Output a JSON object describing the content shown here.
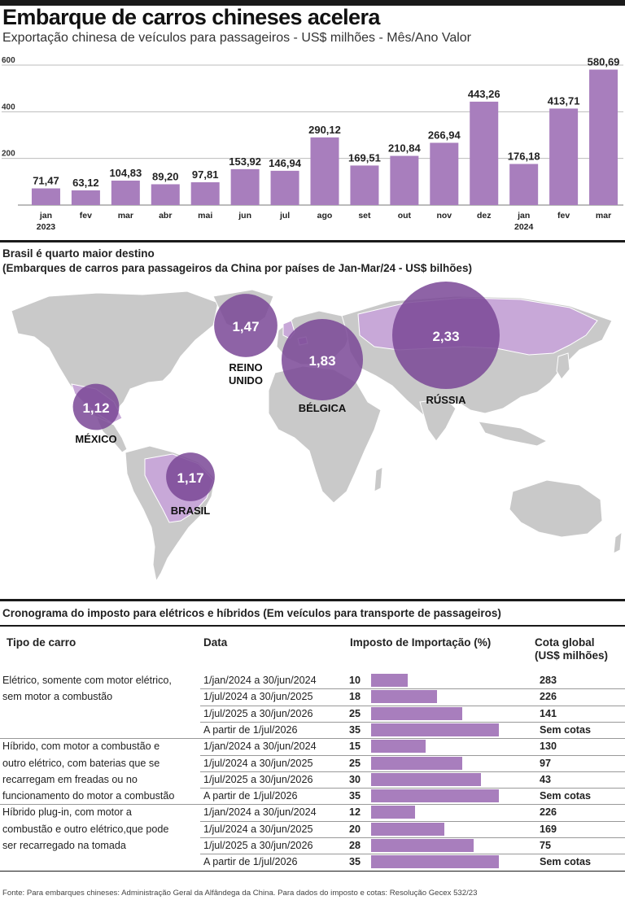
{
  "header": {
    "title": "Embarque de carros chineses acelera",
    "subtitle": "Exportação chinesa de veículos para passageiros - US$ milhões - Mês/Ano Valor"
  },
  "colors": {
    "bar": "#a87ebd",
    "bubble": "#7a4896",
    "land": "#c9c9c9",
    "highlight_land": "#c8a8d8",
    "rule": "#1a1a1a"
  },
  "chart_data": {
    "type": "bar",
    "title": "Embarque de carros chineses acelera",
    "subtitle": "Exportação chinesa de veículos para passageiros - US$ milhões - Mês/Ano Valor",
    "categories": [
      "jan",
      "fev",
      "mar",
      "abr",
      "mai",
      "jun",
      "jul",
      "ago",
      "set",
      "out",
      "nov",
      "dez",
      "jan",
      "fev",
      "mar"
    ],
    "year_labels": [
      {
        "index": 0,
        "label": "2023"
      },
      {
        "index": 12,
        "label": "2024"
      }
    ],
    "values": [
      71.47,
      63.12,
      104.83,
      89.2,
      97.81,
      153.92,
      146.94,
      290.12,
      169.51,
      210.84,
      266.94,
      443.26,
      176.18,
      413.71,
      580.69
    ],
    "value_labels": [
      "71,47",
      "63,12",
      "104,83",
      "89,20",
      "97,81",
      "153,92",
      "146,94",
      "290,12",
      "169,51",
      "210,84",
      "266,94",
      "443,26",
      "176,18",
      "413,71",
      "580,69"
    ],
    "yticks": [
      200,
      400,
      600
    ],
    "ytick_labels": [
      "200",
      "400",
      "600"
    ],
    "ylim": [
      0,
      600
    ],
    "xlabel": "",
    "ylabel": ""
  },
  "map": {
    "title": "Brasil é quarto maior destino",
    "subtitle": "(Embarques de carros para passageiros da China por países de Jan-Mar/24 - US$ bilhões)",
    "destinations": [
      {
        "country": "RÚSSIA",
        "value": 2.33,
        "value_label": "2,33"
      },
      {
        "country": "BÉLGICA",
        "value": 1.83,
        "value_label": "1,83"
      },
      {
        "country": "REINO UNIDO",
        "label_line1": "REINO",
        "label_line2": "UNIDO",
        "value": 1.47,
        "value_label": "1,47"
      },
      {
        "country": "BRASIL",
        "value": 1.17,
        "value_label": "1,17"
      },
      {
        "country": "MÉXICO",
        "value": 1.12,
        "value_label": "1,12"
      }
    ]
  },
  "tax_table": {
    "title": "Cronograma do imposto para elétricos e híbridos (Em veículos para transporte de passageiros)",
    "headers": {
      "type": "Tipo  de carro",
      "date": "Data",
      "rate": "Imposto de Importação (%)",
      "quota_line1": "Cota global",
      "quota_line2": "(US$ milhões)"
    },
    "groups": [
      {
        "type_lines": [
          "Elétrico, somente com motor elétrico,",
          "sem motor a combustão"
        ],
        "rows": [
          {
            "date": "1/jan/2024 a 30/jun/2024",
            "rate": 10,
            "quota": "283"
          },
          {
            "date": "1/jul/2024 a 30/jun/2025",
            "rate": 18,
            "quota": "226"
          },
          {
            "date": "1/jul/2025 a 30/jun/2026",
            "rate": 25,
            "quota": "141"
          },
          {
            "date": "A partir de 1/jul/2026",
            "rate": 35,
            "quota": "Sem cotas"
          }
        ]
      },
      {
        "type_lines": [
          "Híbrido, com motor a combustão e",
          "outro elétrico, com baterias que se",
          "recarregam em freadas ou no",
          "funcionamento do motor a combustão"
        ],
        "rows": [
          {
            "date": "1/jan/2024 a 30/jun/2024",
            "rate": 15,
            "quota": "130"
          },
          {
            "date": "1/jul/2024 a 30/jun/2025",
            "rate": 25,
            "quota": "97"
          },
          {
            "date": "1/jul/2025 a 30/jun/2026",
            "rate": 30,
            "quota": "43"
          },
          {
            "date": "A partir de 1/jul/2026",
            "rate": 35,
            "quota": "Sem cotas"
          }
        ]
      },
      {
        "type_lines": [
          "Híbrido plug-in, com motor a",
          "combustão e outro elétrico,que  pode",
          "ser recarregado na tomada"
        ],
        "rows": [
          {
            "date": "1/jan/2024 a 30/jun/2024",
            "rate": 12,
            "quota": "226"
          },
          {
            "date": "1/jul/2024 a 30/jun/2025",
            "rate": 20,
            "quota": "169"
          },
          {
            "date": "1/jul/2025 a 30/jun/2026",
            "rate": 28,
            "quota": "75"
          },
          {
            "date": "A partir de 1/jul/2026",
            "rate": 35,
            "quota": "Sem cotas"
          }
        ]
      }
    ]
  },
  "footer": "Fonte: Para embarques chineses: Administração Geral da Alfândega da China. Para dados do imposto e cotas: Resolução Gecex 532/23"
}
